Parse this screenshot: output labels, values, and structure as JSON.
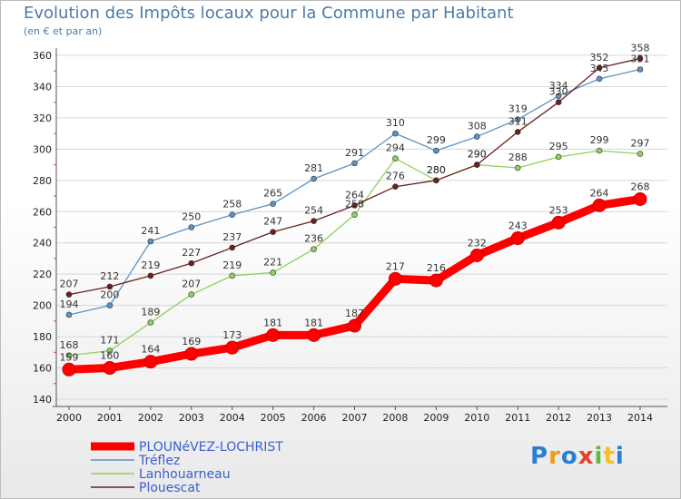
{
  "header": {
    "title": "Evolution des Impôts locaux pour la Commune par Habitant",
    "subtitle": "(en € et par an)"
  },
  "logo": {
    "text": "Proxiti"
  },
  "chart_data": {
    "type": "line",
    "title": "Evolution des Impôts locaux pour la Commune par Habitant",
    "subtitle": "(en € et par an)",
    "xlabel": "",
    "ylabel": "",
    "x": [
      "2000",
      "2001",
      "2002",
      "2003",
      "2004",
      "2005",
      "2006",
      "2007",
      "2008",
      "2009",
      "2010",
      "2011",
      "2012",
      "2013",
      "2014"
    ],
    "ylim": [
      140,
      360
    ],
    "yticks": [
      140,
      160,
      180,
      200,
      220,
      240,
      260,
      280,
      300,
      320,
      340,
      360
    ],
    "grid": "horizontal",
    "legend_position": "bottom-left",
    "series": [
      {
        "name": "Tréflez",
        "color": "#5b93c7",
        "values": [
          194,
          200,
          241,
          250,
          258,
          265,
          281,
          291,
          310,
          299,
          308,
          319,
          334,
          345,
          351
        ]
      },
      {
        "name": "Lanhouarneau",
        "color": "#8dd15a",
        "values": [
          168,
          171,
          189,
          207,
          219,
          221,
          236,
          258,
          294,
          280,
          290,
          288,
          295,
          299,
          297
        ]
      },
      {
        "name": "Plouescat",
        "color": "#6b1f1f",
        "values": [
          207,
          212,
          219,
          227,
          237,
          247,
          254,
          264,
          276,
          280,
          290,
          311,
          330,
          352,
          358
        ]
      },
      {
        "name": "PLOUNéVEZ-LOCHRIST",
        "color": "#ff0000",
        "values": [
          159,
          160,
          164,
          169,
          173,
          181,
          181,
          187,
          217,
          216,
          232,
          243,
          253,
          264,
          268
        ]
      }
    ],
    "legend_order": [
      "PLOUNéVEZ-LOCHRIST",
      "Tréflez",
      "Lanhouarneau",
      "Plouescat"
    ]
  }
}
